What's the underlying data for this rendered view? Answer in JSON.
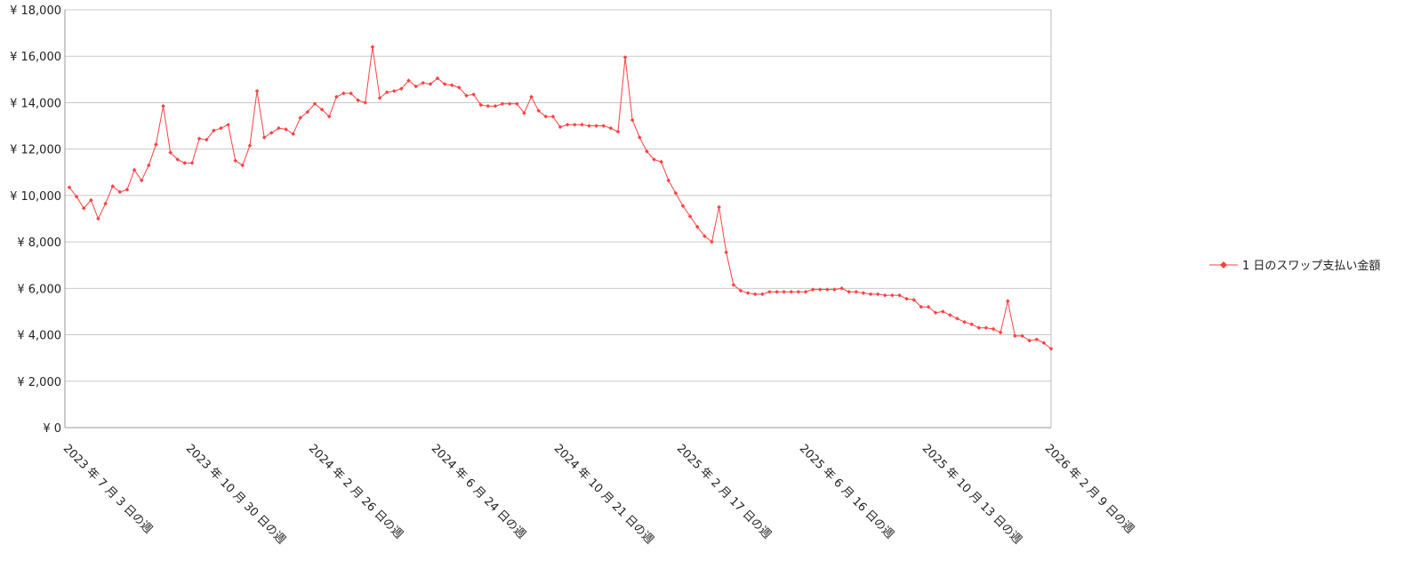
{
  "chart_data": {
    "type": "line",
    "categories": [
      "2023 年 7 月 3 日の週",
      null,
      null,
      null,
      null,
      null,
      null,
      null,
      null,
      null,
      null,
      null,
      null,
      null,
      null,
      null,
      null,
      "2023 年 10 月 30 日の週",
      null,
      null,
      null,
      null,
      null,
      null,
      null,
      null,
      null,
      null,
      null,
      null,
      null,
      null,
      null,
      null,
      "2024 年 2 月 26 日の週",
      null,
      null,
      null,
      null,
      null,
      null,
      null,
      null,
      null,
      null,
      null,
      null,
      null,
      null,
      null,
      null,
      "2024 年 6 月 24 日の週",
      null,
      null,
      null,
      null,
      null,
      null,
      null,
      null,
      null,
      null,
      null,
      null,
      null,
      null,
      null,
      null,
      "2024 年 10 月 21 日の週",
      null,
      null,
      null,
      null,
      null,
      null,
      null,
      null,
      null,
      null,
      null,
      null,
      null,
      null,
      null,
      null,
      "2025 年 2 月 17 日の週",
      null,
      null,
      null,
      null,
      null,
      null,
      null,
      null,
      null,
      null,
      null,
      null,
      null,
      null,
      null,
      null,
      "2025 年 6 月 16 日の週",
      null,
      null,
      null,
      null,
      null,
      null,
      null,
      null,
      null,
      null,
      null,
      null,
      null,
      null,
      null,
      null,
      "2025 年 10 月 13 日の週",
      null,
      null,
      null,
      null,
      null,
      null,
      null,
      null,
      null,
      null,
      null,
      null,
      null,
      null,
      null,
      null,
      "2026 年 2 月 9 日の週"
    ],
    "series": [
      {
        "name": "1 日のスワップ支払い金額",
        "color": "#ff4040",
        "values": [
          10350,
          9950,
          9450,
          9800,
          9000,
          9650,
          10400,
          10150,
          10250,
          11100,
          10650,
          11300,
          12200,
          13850,
          11850,
          11550,
          11400,
          11400,
          12450,
          12400,
          12800,
          12900,
          13050,
          11500,
          11300,
          12150,
          14500,
          12500,
          12700,
          12900,
          12850,
          12650,
          13350,
          13600,
          13950,
          13700,
          13400,
          14250,
          14400,
          14400,
          14100,
          14000,
          16400,
          14200,
          14450,
          14500,
          14600,
          14950,
          14700,
          14850,
          14800,
          15050,
          14800,
          14750,
          14650,
          14300,
          14350,
          13900,
          13850,
          13850,
          13950,
          13950,
          13950,
          13550,
          14250,
          13650,
          13400,
          13400,
          12950,
          13050,
          13050,
          13050,
          13000,
          13000,
          13000,
          12900,
          12750,
          15950,
          13250,
          12500,
          11900,
          11550,
          11450,
          10650,
          10100,
          9550,
          9100,
          8650,
          8250,
          8000,
          9500,
          7550,
          6150,
          5900,
          5800,
          5750,
          5750,
          5850,
          5850,
          5850,
          5850,
          5850,
          5850,
          5950,
          5950,
          5950,
          5950,
          6000,
          5850,
          5850,
          5800,
          5750,
          5750,
          5700,
          5700,
          5700,
          5550,
          5500,
          5200,
          5200,
          4950,
          5000,
          4850,
          4700,
          4550,
          4450,
          4300,
          4300,
          4250,
          4100,
          5450,
          3950,
          3950,
          3750,
          3800,
          3650,
          3400
        ]
      }
    ],
    "ylim": [
      0,
      18000
    ],
    "yticks": [
      {
        "value": 0,
        "label": "¥ 0"
      },
      {
        "value": 2000,
        "label": "¥ 2,000"
      },
      {
        "value": 4000,
        "label": "¥ 4,000"
      },
      {
        "value": 6000,
        "label": "¥ 6,000"
      },
      {
        "value": 8000,
        "label": "¥ 8,000"
      },
      {
        "value": 10000,
        "label": "¥ 10,000"
      },
      {
        "value": 12000,
        "label": "¥ 12,000"
      },
      {
        "value": 14000,
        "label": "¥ 14,000"
      },
      {
        "value": 16000,
        "label": "¥ 16,000"
      },
      {
        "value": 18000,
        "label": "¥ 18,000"
      }
    ],
    "grid": true,
    "legend": "right"
  }
}
